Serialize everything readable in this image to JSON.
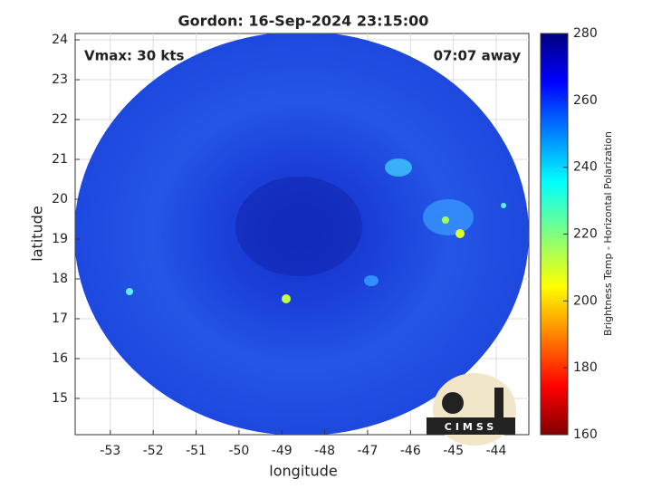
{
  "chart_data": {
    "type": "image",
    "title": "Gordon: 16-Sep-2024 23:15:00",
    "annotations": [
      "Vmax: 30 kts",
      "07:07 away"
    ],
    "xlabel": "longitude",
    "ylabel": "latitude",
    "xlim": [
      -53.82,
      -43.24
    ],
    "ylim": [
      14.09,
      24.16
    ],
    "xticks": [
      -53,
      -52,
      -51,
      -50,
      -49,
      -48,
      -47,
      -46,
      -45,
      -44
    ],
    "yticks": [
      15,
      16,
      17,
      18,
      19,
      20,
      21,
      22,
      23,
      24
    ],
    "grid": true,
    "colorbar": {
      "label": "Brightness Temp - Horizontal Polarization",
      "lim": [
        160,
        280
      ],
      "ticks": [
        160,
        180,
        200,
        220,
        240,
        260,
        280
      ]
    },
    "logo_text": "CIMSS"
  }
}
